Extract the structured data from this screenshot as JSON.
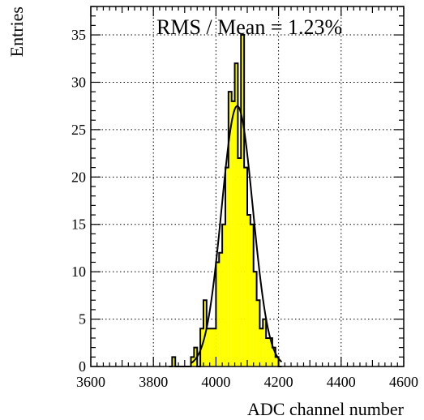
{
  "chart_data": {
    "type": "bar",
    "subtype": "histogram",
    "xlabel": "ADC channel number",
    "ylabel": "Entries",
    "annotation": "RMS / Mean = 1.23%",
    "xlim": [
      3600,
      4600
    ],
    "ylim": [
      0,
      38
    ],
    "xticks": [
      3600,
      3800,
      4000,
      4200,
      4400,
      4600
    ],
    "yticks": [
      0,
      5,
      10,
      15,
      20,
      25,
      30,
      35
    ],
    "grid": true,
    "bin_width": 10,
    "bins": [
      {
        "x": 3850,
        "value": 0
      },
      {
        "x": 3860,
        "value": 1
      },
      {
        "x": 3870,
        "value": 0
      },
      {
        "x": 3880,
        "value": 0
      },
      {
        "x": 3890,
        "value": 0
      },
      {
        "x": 3900,
        "value": 0
      },
      {
        "x": 3910,
        "value": 0
      },
      {
        "x": 3920,
        "value": 1
      },
      {
        "x": 3930,
        "value": 2
      },
      {
        "x": 3940,
        "value": 0
      },
      {
        "x": 3950,
        "value": 4
      },
      {
        "x": 3960,
        "value": 7
      },
      {
        "x": 3970,
        "value": 4
      },
      {
        "x": 3980,
        "value": 4
      },
      {
        "x": 3990,
        "value": 4
      },
      {
        "x": 4000,
        "value": 11
      },
      {
        "x": 4010,
        "value": 12
      },
      {
        "x": 4020,
        "value": 15
      },
      {
        "x": 4030,
        "value": 21
      },
      {
        "x": 4040,
        "value": 29
      },
      {
        "x": 4050,
        "value": 28
      },
      {
        "x": 4060,
        "value": 32
      },
      {
        "x": 4070,
        "value": 22
      },
      {
        "x": 4080,
        "value": 35
      },
      {
        "x": 4090,
        "value": 21
      },
      {
        "x": 4100,
        "value": 16
      },
      {
        "x": 4110,
        "value": 15
      },
      {
        "x": 4120,
        "value": 10
      },
      {
        "x": 4130,
        "value": 7
      },
      {
        "x": 4140,
        "value": 4
      },
      {
        "x": 4150,
        "value": 5
      },
      {
        "x": 4160,
        "value": 3
      },
      {
        "x": 4170,
        "value": 3
      },
      {
        "x": 4180,
        "value": 2
      },
      {
        "x": 4190,
        "value": 1
      },
      {
        "x": 4200,
        "value": 0
      }
    ],
    "fit": {
      "type": "gaussian",
      "amplitude": 27.5,
      "mean": 4068,
      "sigma": 50
    },
    "colors": {
      "fill": "#ffff00",
      "line": "#000000",
      "grid": "#000000"
    }
  }
}
